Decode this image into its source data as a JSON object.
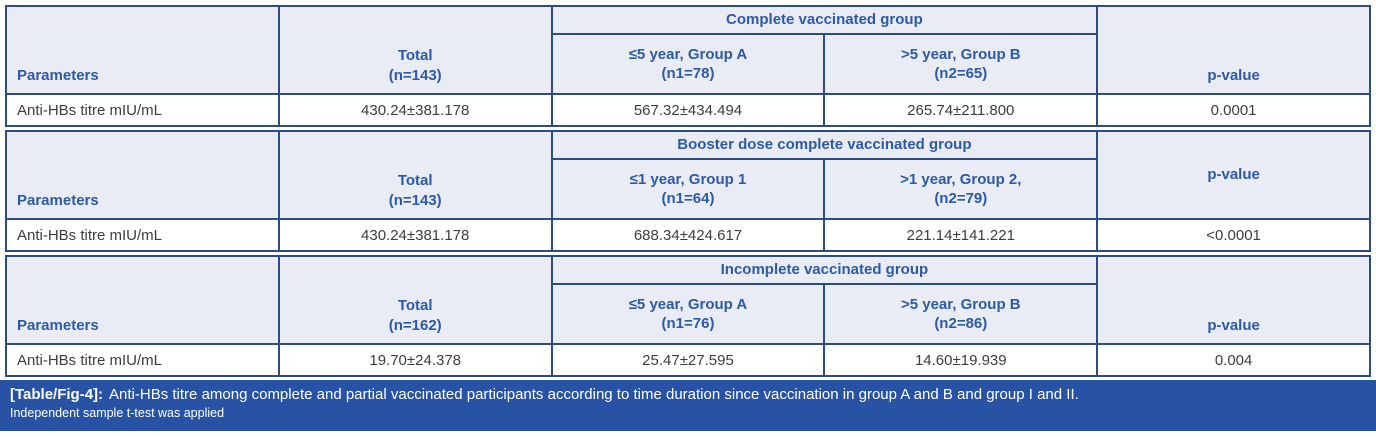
{
  "table": {
    "sections": [
      {
        "group_header": "Complete vaccinated group",
        "parameters_label": "Parameters",
        "total_line1": "Total",
        "total_line2": "(n=143)",
        "col_a_line1": "≤5 year, Group A",
        "col_a_line2": "(n1=78)",
        "col_b_line1": ">5 year, Group B",
        "col_b_line2": "(n2=65)",
        "p_label": "p-value",
        "row": {
          "parameter": "Anti-HBs titre mIU/mL",
          "total": "430.24±381.178",
          "group_a": "567.32±434.494",
          "group_b": "265.74±211.800",
          "p_value": "0.0001"
        }
      },
      {
        "group_header": "Booster dose complete vaccinated group",
        "parameters_label": "Parameters",
        "total_line1": "Total",
        "total_line2": "(n=143)",
        "col_a_line1": "≤1 year, Group 1",
        "col_a_line2": "(n1=64)",
        "col_b_line1": ">1 year, Group 2,",
        "col_b_line2": "(n2=79)",
        "p_label": "p-value",
        "row": {
          "parameter": "Anti-HBs titre mIU/mL",
          "total": "430.24±381.178",
          "group_a": "688.34±424.617",
          "group_b": "221.14±141.221",
          "p_value": "<0.0001"
        }
      },
      {
        "group_header": "Incomplete vaccinated group",
        "parameters_label": "Parameters",
        "total_line1": "Total",
        "total_line2": "(n=162)",
        "col_a_line1": "≤5 year, Group A",
        "col_a_line2": "(n1=76)",
        "col_b_line1": ">5 year, Group B",
        "col_b_line2": "(n2=86)",
        "p_label": "p-value",
        "row": {
          "parameter": "Anti-HBs titre mIU/mL",
          "total": "19.70±24.378",
          "group_a": "25.47±27.595",
          "group_b": "14.60±19.939",
          "p_value": "0.004"
        }
      }
    ]
  },
  "caption": {
    "tag": "[Table/Fig-4]:",
    "text": "Anti-HBs titre among complete and partial vaccinated participants according to time duration since vaccination in group A and B and group I and II.",
    "note": "Independent sample t-test was applied"
  },
  "colors": {
    "header_bg": "#eaecf5",
    "header_text": "#2c5aa6",
    "border": "#2d4d80",
    "data_text": "#3d3d3d",
    "caption_bg": "#2853a4",
    "caption_text": "#ffffff"
  }
}
